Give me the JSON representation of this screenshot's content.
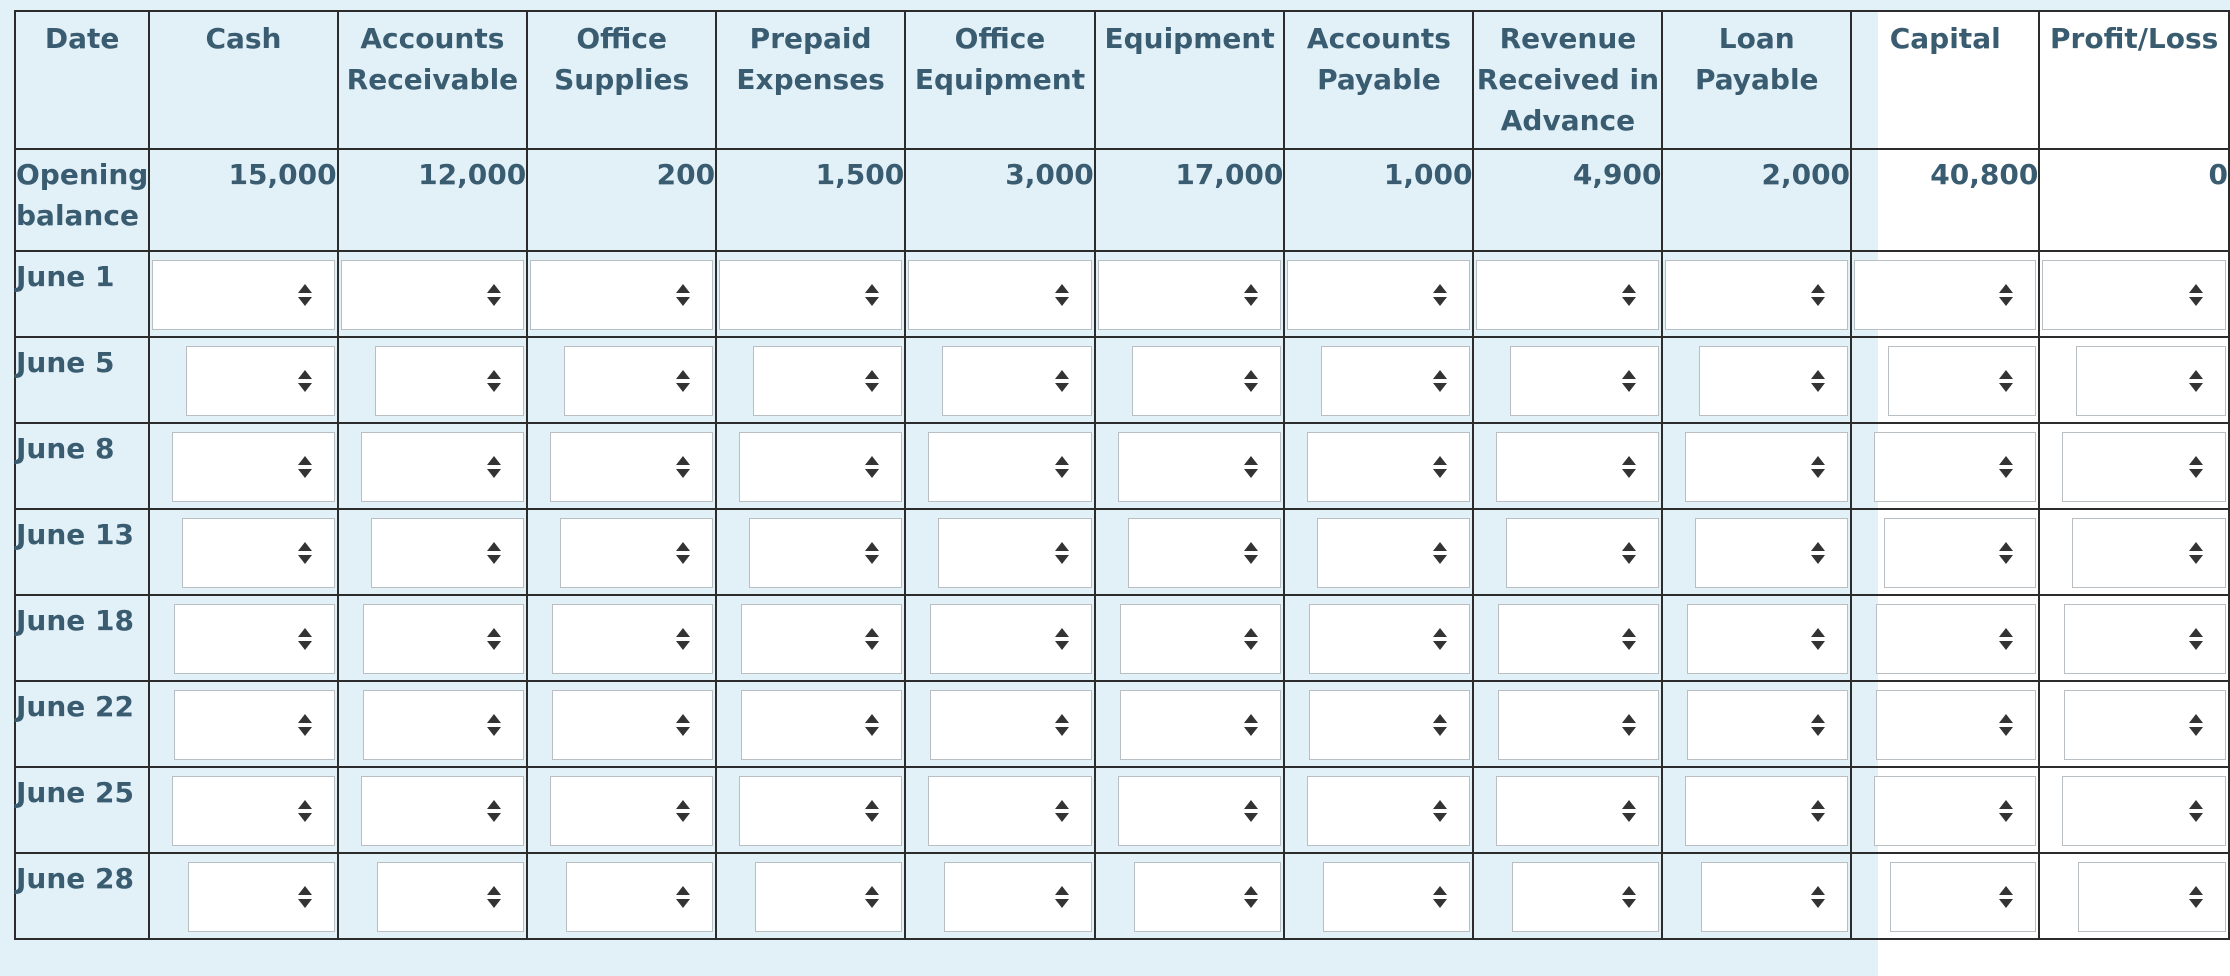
{
  "table": {
    "columns": [
      "Date",
      "Cash",
      "Accounts Receivable",
      "Office Supplies",
      "Prepaid Expenses",
      "Office Equipment",
      "Equipment",
      "Accounts Payable",
      "Revenue Received in Advance",
      "Loan Payable",
      "Capital",
      "Profit/Loss"
    ],
    "opening_balance": {
      "label": "Opening balance",
      "values": [
        "15,000",
        "12,000",
        "200",
        "1,500",
        "3,000",
        "17,000",
        "1,000",
        "4,900",
        "2,000",
        "40,800",
        "0"
      ]
    },
    "transaction_dates": [
      "June 1",
      "June 5",
      "June 8",
      "June 13",
      "June 18",
      "June 22",
      "June 25",
      "June 28"
    ]
  },
  "icons": {
    "stepper": "up-down-arrows-icon"
  },
  "colors": {
    "panel_bg": "#e2f0f8",
    "text": "#3a5c70",
    "border": "#2c2c2c"
  }
}
